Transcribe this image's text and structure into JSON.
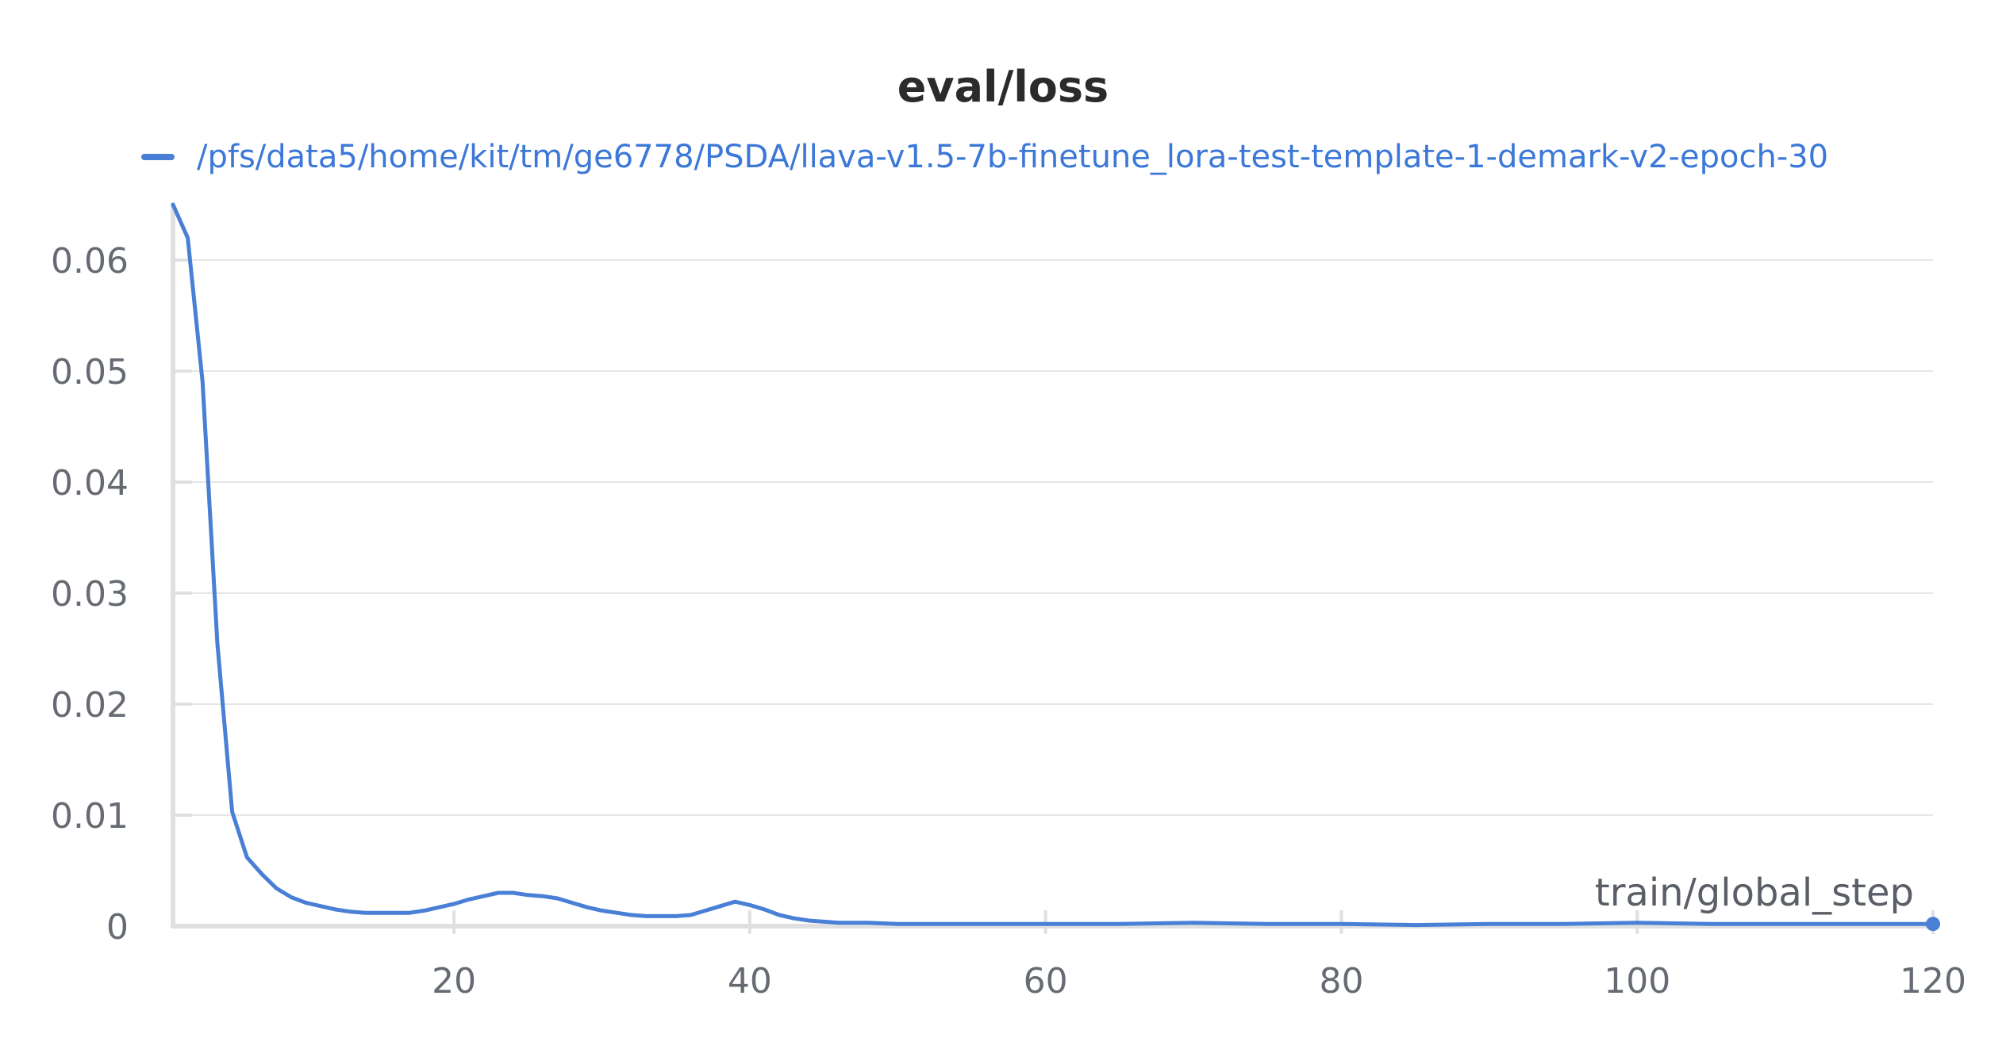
{
  "chart_data": {
    "type": "line",
    "title": "eval/loss",
    "xlabel": "train/global_step",
    "ylabel": "",
    "xlim": [
      1,
      120
    ],
    "ylim": [
      0,
      0.065
    ],
    "x_ticks": [
      "20",
      "40",
      "60",
      "80",
      "100",
      "120"
    ],
    "x_tick_values": [
      20,
      40,
      60,
      80,
      100,
      120
    ],
    "y_ticks": [
      "0",
      "0.01",
      "0.02",
      "0.03",
      "0.04",
      "0.05",
      "0.06"
    ],
    "y_tick_values": [
      0,
      0.01,
      0.02,
      0.03,
      0.04,
      0.05,
      0.06
    ],
    "grid": true,
    "legend_position": "top-left",
    "series": [
      {
        "name": "/pfs/data5/home/kit/tm/ge6778/PSDA/llava-v1.5-7b-finetune_lora-test-template-1-demark-v2-epoch-30",
        "color": "#4a7fd6",
        "x": [
          1,
          2,
          3,
          4,
          5,
          6,
          7,
          8,
          9,
          10,
          11,
          12,
          13,
          14,
          15,
          16,
          17,
          18,
          19,
          20,
          21,
          22,
          23,
          24,
          25,
          26,
          27,
          28,
          29,
          30,
          31,
          32,
          33,
          34,
          35,
          36,
          37,
          38,
          39,
          40,
          41,
          42,
          43,
          44,
          45,
          46,
          47,
          48,
          50,
          55,
          60,
          65,
          70,
          75,
          80,
          85,
          90,
          95,
          100,
          105,
          110,
          115,
          120
        ],
        "y": [
          0.065,
          0.062,
          0.049,
          0.0255,
          0.0103,
          0.0062,
          0.0047,
          0.0034,
          0.0026,
          0.0021,
          0.0018,
          0.0015,
          0.0013,
          0.0012,
          0.0012,
          0.0012,
          0.0012,
          0.0014,
          0.0017,
          0.002,
          0.0024,
          0.0027,
          0.003,
          0.003,
          0.0028,
          0.0027,
          0.0025,
          0.0021,
          0.0017,
          0.0014,
          0.0012,
          0.001,
          0.0009,
          0.0009,
          0.0009,
          0.001,
          0.0014,
          0.0018,
          0.0022,
          0.0019,
          0.0015,
          0.001,
          0.0007,
          0.0005,
          0.0004,
          0.0003,
          0.0003,
          0.0003,
          0.0002,
          0.0002,
          0.0002,
          0.0002,
          0.0003,
          0.0002,
          0.0002,
          0.0001,
          0.0002,
          0.0002,
          0.0003,
          0.0002,
          0.0002,
          0.0002,
          0.0002
        ]
      }
    ]
  }
}
